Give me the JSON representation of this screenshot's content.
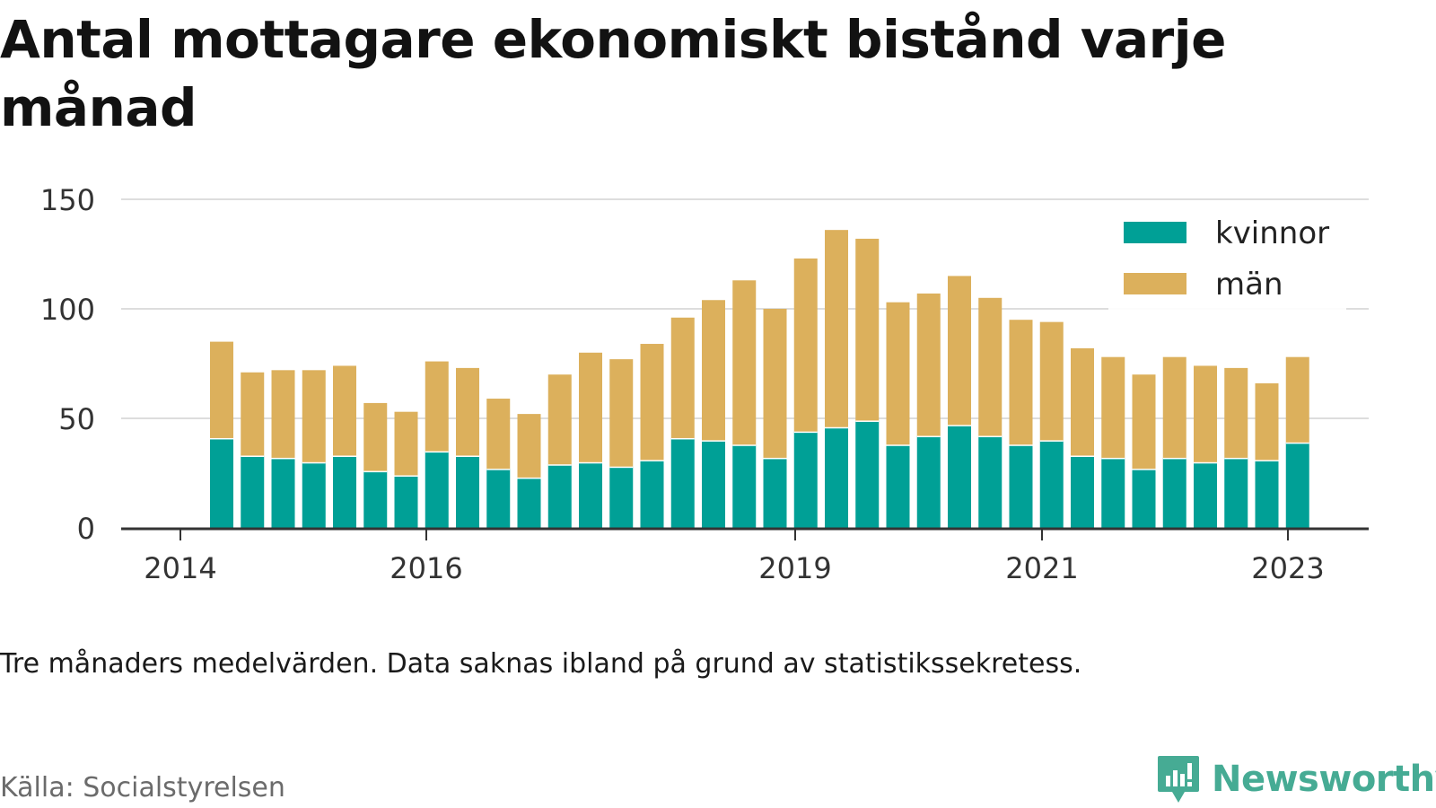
{
  "title": "Antal mottagare ekonomiskt bistånd varje månad",
  "note": "Tre månaders medelvärden. Data saknas ibland på grund av statistikssekretess.",
  "source": "Källa: Socialstyrelsen",
  "brand": {
    "name": "Newsworthy",
    "color": "#46ab94",
    "icon": "newsworthy-logo-icon"
  },
  "colors": {
    "kvinnor": "#00a096",
    "man": "#dcb05c",
    "grid": "#dddddd",
    "axis": "#333333"
  },
  "chart_data": {
    "type": "bar",
    "stacked": true,
    "x_ticks": [
      "2014",
      "2016",
      "2019",
      "2021",
      "2023"
    ],
    "y_ticks": [
      0,
      50,
      100,
      150
    ],
    "ylim": [
      0,
      150
    ],
    "grid": true,
    "legend_position": "top-right",
    "series": [
      {
        "name": "kvinnor",
        "color": "#00a096",
        "values": [
          41,
          33,
          32,
          30,
          33,
          26,
          24,
          35,
          33,
          27,
          23,
          29,
          30,
          28,
          31,
          41,
          40,
          38,
          32,
          44,
          46,
          49,
          38,
          42,
          47,
          42,
          38,
          40,
          33,
          32,
          27,
          32,
          30,
          32,
          31,
          39
        ]
      },
      {
        "name": "män",
        "color": "#dcb05c",
        "values": [
          44,
          38,
          40,
          42,
          41,
          31,
          29,
          41,
          40,
          32,
          29,
          41,
          50,
          49,
          53,
          55,
          64,
          75,
          68,
          79,
          90,
          83,
          65,
          65,
          68,
          63,
          57,
          54,
          49,
          46,
          43,
          46,
          44,
          41,
          35,
          39
        ]
      }
    ]
  }
}
